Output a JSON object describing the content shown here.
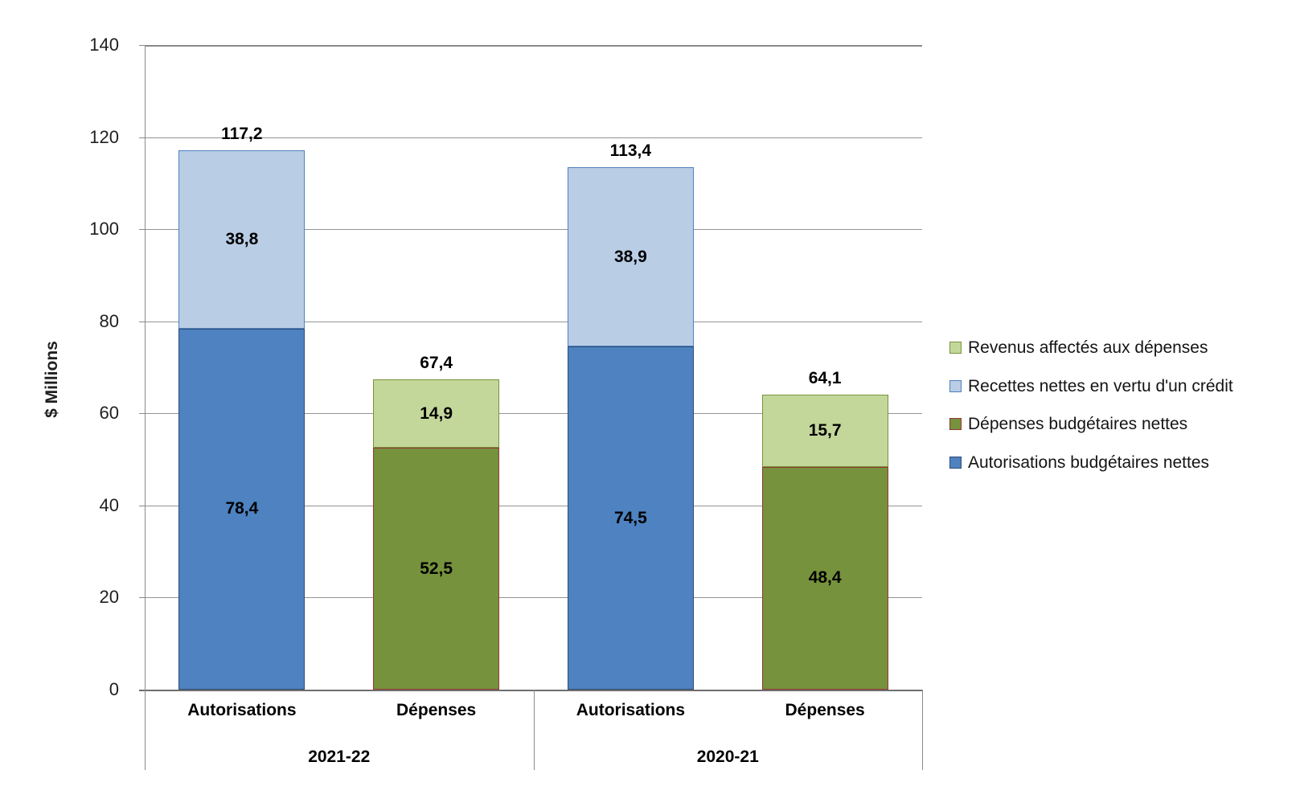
{
  "chart_data": {
    "type": "bar",
    "stacked": true,
    "orientation": "vertical",
    "ylabel": "$ Millions",
    "ylim": [
      0,
      140
    ],
    "yticks": [
      "0",
      "20",
      "40",
      "60",
      "80",
      "100",
      "120",
      "140"
    ],
    "ytick_values": [
      0,
      20,
      40,
      60,
      80,
      100,
      120,
      140
    ],
    "grid": true,
    "legend_position": "right",
    "decimal_separator": ",",
    "groups": [
      {
        "label": "2021-22",
        "bars": [
          {
            "label": "Autorisations",
            "total_label": "117,2",
            "total_value": 117.2,
            "segments": [
              {
                "series": "Autorisations budgétaires nettes",
                "label": "78,4",
                "value": 78.4,
                "fill": "#4E82C0",
                "border": "#2E4D77"
              },
              {
                "series": "Recettes nettes en vertu d'un crédit",
                "label": "38,8",
                "value": 38.8,
                "fill": "#B9CDE5",
                "border": "#4F81BD"
              }
            ]
          },
          {
            "label": "Dépenses",
            "total_label": "67,4",
            "total_value": 67.4,
            "segments": [
              {
                "series": "Dépenses budgétaires nettes",
                "label": "52,5",
                "value": 52.5,
                "fill": "#76923C",
                "border": "#953735"
              },
              {
                "series": "Revenus affectés aux dépenses",
                "label": "14,9",
                "value": 14.9,
                "fill": "#C4D79B",
                "border": "#77933C"
              }
            ]
          }
        ]
      },
      {
        "label": "2020-21",
        "bars": [
          {
            "label": "Autorisations",
            "total_label": "113,4",
            "total_value": 113.4,
            "segments": [
              {
                "series": "Autorisations budgétaires nettes",
                "label": "74,5",
                "value": 74.5,
                "fill": "#4E82C0",
                "border": "#2E4D77"
              },
              {
                "series": "Recettes nettes en vertu d'un crédit",
                "label": "38,9",
                "value": 38.9,
                "fill": "#B9CDE5",
                "border": "#4F81BD"
              }
            ]
          },
          {
            "label": "Dépenses",
            "total_label": "64,1",
            "total_value": 64.1,
            "segments": [
              {
                "series": "Dépenses budgétaires nettes",
                "label": "48,4",
                "value": 48.4,
                "fill": "#76923C",
                "border": "#953735"
              },
              {
                "series": "Revenus affectés aux dépenses",
                "label": "15,7",
                "value": 15.7,
                "fill": "#C4D79B",
                "border": "#77933C"
              }
            ]
          }
        ]
      }
    ],
    "legend": [
      {
        "label": "Revenus affectés aux dépenses",
        "fill": "#C4D79B",
        "border": "#77933C"
      },
      {
        "label": "Recettes nettes en vertu d'un crédit",
        "fill": "#B9CDE5",
        "border": "#4F81BD"
      },
      {
        "label": "Dépenses budgétaires nettes",
        "fill": "#76923C",
        "border": "#953735"
      },
      {
        "label": "Autorisations budgétaires nettes",
        "fill": "#4E82C0",
        "border": "#2E4D77"
      }
    ],
    "colors": {
      "gridline": "#8a8a8a",
      "axis_line": "#6e6e6e",
      "label_text": "#000000"
    }
  }
}
